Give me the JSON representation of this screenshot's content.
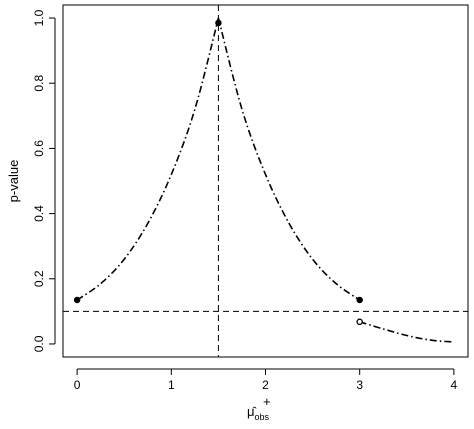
{
  "chart_data": {
    "type": "line",
    "xlabel": "μ̂",
    "xlabel_superscript": "+",
    "xlabel_subscript": "obs",
    "ylabel": "p-value",
    "xlim": [
      -0.15,
      4.15
    ],
    "ylim": [
      -0.04,
      1.04
    ],
    "x_ticks": [
      0,
      1,
      2,
      3,
      4
    ],
    "x_tick_labels": [
      "0",
      "1",
      "2",
      "3",
      "4"
    ],
    "y_ticks": [
      0.0,
      0.2,
      0.4,
      0.6,
      0.8,
      1.0
    ],
    "y_tick_labels": [
      "0.0",
      "0.2",
      "0.4",
      "0.6",
      "0.8",
      "1.0"
    ],
    "grid": false,
    "series": [
      {
        "line_style": "dash-dot",
        "x": [
          0.0,
          0.25,
          0.5,
          0.75,
          1.0,
          1.25,
          1.5
        ],
        "y": [
          0.135,
          0.185,
          0.26,
          0.37,
          0.52,
          0.72,
          1.0
        ]
      },
      {
        "line_style": "dash-dot",
        "x": [
          1.5,
          1.75,
          2.0,
          2.25,
          2.5,
          2.75,
          3.0
        ],
        "y": [
          1.0,
          0.72,
          0.52,
          0.37,
          0.26,
          0.185,
          0.135
        ]
      },
      {
        "line_style": "dash-dot",
        "x": [
          3.0,
          3.25,
          3.5,
          3.75,
          4.0
        ],
        "y": [
          0.068,
          0.046,
          0.026,
          0.012,
          0.006
        ]
      }
    ],
    "points": [
      {
        "x": 0.0,
        "y": 0.135,
        "marker": "filled"
      },
      {
        "x": 1.5,
        "y": 0.985,
        "marker": "filled"
      },
      {
        "x": 3.0,
        "y": 0.135,
        "marker": "filled"
      },
      {
        "x": 3.0,
        "y": 0.068,
        "marker": "open"
      }
    ],
    "reference_lines": [
      {
        "orientation": "vertical",
        "value": 1.5,
        "style": "dashed"
      },
      {
        "orientation": "horizontal",
        "value": 0.1,
        "style": "dashed"
      }
    ]
  }
}
